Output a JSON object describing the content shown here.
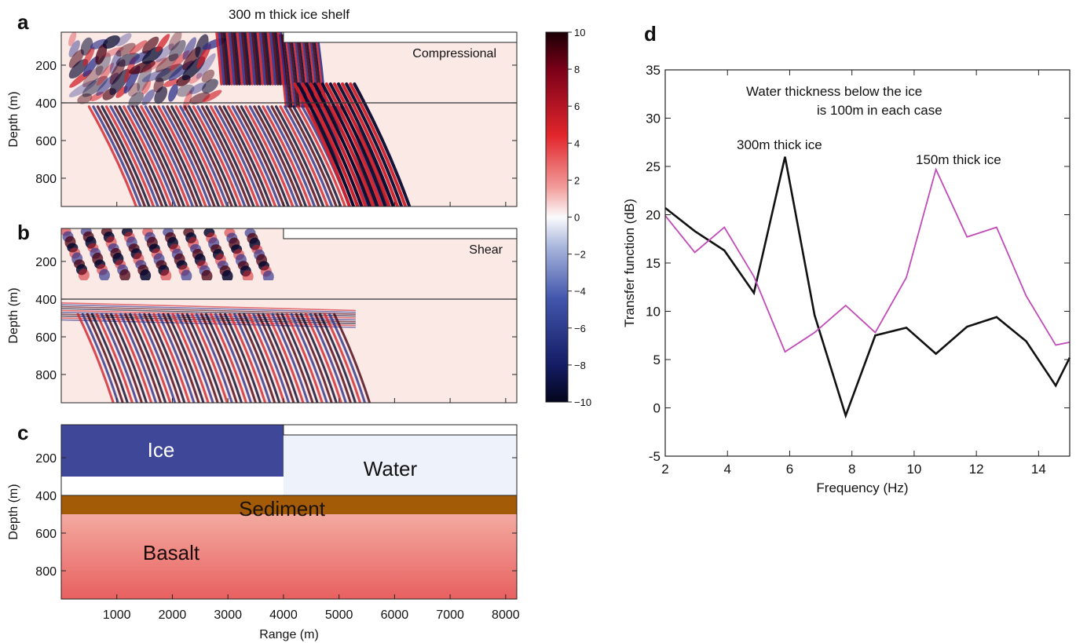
{
  "figure_title": "300 m thick ice shelf",
  "panel_labels": {
    "a": "a",
    "b": "b",
    "c": "c",
    "d": "d"
  },
  "colors": {
    "positive": "#d0202a",
    "negative": "#2b2f88",
    "dark_positive": "#4a0010",
    "dark_negative": "#07082e",
    "background_wash": "#fbe9e6",
    "ice": "#3f4799",
    "water": "#eef3fb",
    "sediment": "#a45b07",
    "basalt_top": "#f3aaa0",
    "basalt_bottom": "#e86060",
    "line_300m": "#111111",
    "line_150m": "#c04ab8"
  },
  "chart_data": [
    {
      "panel": "a",
      "type": "heatmap",
      "title": "300 m thick ice shelf",
      "annotation": "Compressional",
      "ylabel": "Depth (m)",
      "yticks": [
        200,
        400,
        600,
        800
      ],
      "ylim": [
        950,
        25
      ],
      "xlim": [
        0,
        8200
      ],
      "description_of_field": "compressional wavefield, amplitude -10..10",
      "interfaces": {
        "ice_base": 300,
        "seafloor": 400,
        "shelf_edge_range": 4000
      }
    },
    {
      "panel": "b",
      "type": "heatmap",
      "annotation": "Shear",
      "ylabel": "Depth (m)",
      "yticks": [
        200,
        400,
        600,
        800
      ],
      "ylim": [
        950,
        25
      ],
      "xlim": [
        0,
        8200
      ]
    },
    {
      "panel": "colorbar",
      "type": "heatmap",
      "ticks": [
        "10",
        "8",
        "6",
        "4",
        "2",
        "0",
        "−2",
        "−4",
        "−6",
        "−8",
        "−10"
      ],
      "range": [
        -10,
        10
      ]
    },
    {
      "panel": "c",
      "type": "diagram",
      "ylabel": "Depth (m)",
      "xlabel": "Range (m)",
      "yticks": [
        200,
        400,
        600,
        800
      ],
      "xticks": [
        1000,
        2000,
        3000,
        4000,
        5000,
        6000,
        7000,
        8000
      ],
      "ylim": [
        950,
        25
      ],
      "xlim": [
        0,
        8200
      ],
      "layers": [
        {
          "name": "Ice",
          "x": [
            0,
            4000
          ],
          "depth": [
            25,
            300
          ]
        },
        {
          "name": "Water",
          "x": [
            4000,
            8200
          ],
          "depth": [
            25,
            400
          ]
        },
        {
          "name": "Sediment",
          "x": [
            0,
            8200
          ],
          "depth": [
            400,
            500
          ]
        },
        {
          "name": "Basalt",
          "x": [
            0,
            8200
          ],
          "depth": [
            500,
            950
          ]
        }
      ]
    },
    {
      "panel": "d",
      "type": "line",
      "xlabel": "Frequency (Hz)",
      "ylabel": "Transfer function (dB)",
      "xlim": [
        2,
        15
      ],
      "ylim": [
        -5,
        35
      ],
      "xticks": [
        2,
        4,
        6,
        8,
        10,
        12,
        14
      ],
      "yticks": [
        -5,
        0,
        5,
        10,
        15,
        20,
        25,
        30,
        35
      ],
      "annotation_line1": "Water thickness below the ice",
      "annotation_line2": "is 100m in each case",
      "series": [
        {
          "name": "300m thick ice",
          "x": [
            2,
            2.95,
            3.9,
            4.85,
            5.85,
            6.8,
            7.8,
            8.75,
            9.75,
            10.7,
            11.7,
            12.65,
            13.6,
            14.55,
            15
          ],
          "y": [
            20.7,
            18.3,
            16.3,
            11.9,
            26.0,
            9.6,
            -0.8,
            7.5,
            8.3,
            5.6,
            8.4,
            9.4,
            6.9,
            2.3,
            5.2
          ]
        },
        {
          "name": "150m thick ice",
          "x": [
            2,
            2.95,
            3.9,
            4.85,
            5.85,
            6.8,
            7.8,
            8.75,
            9.75,
            10.7,
            11.7,
            12.65,
            13.6,
            14.55,
            15
          ],
          "y": [
            19.9,
            16.1,
            18.7,
            13.6,
            5.8,
            7.8,
            10.6,
            7.8,
            13.5,
            24.7,
            17.7,
            18.7,
            11.6,
            6.5,
            6.8
          ]
        }
      ]
    }
  ]
}
